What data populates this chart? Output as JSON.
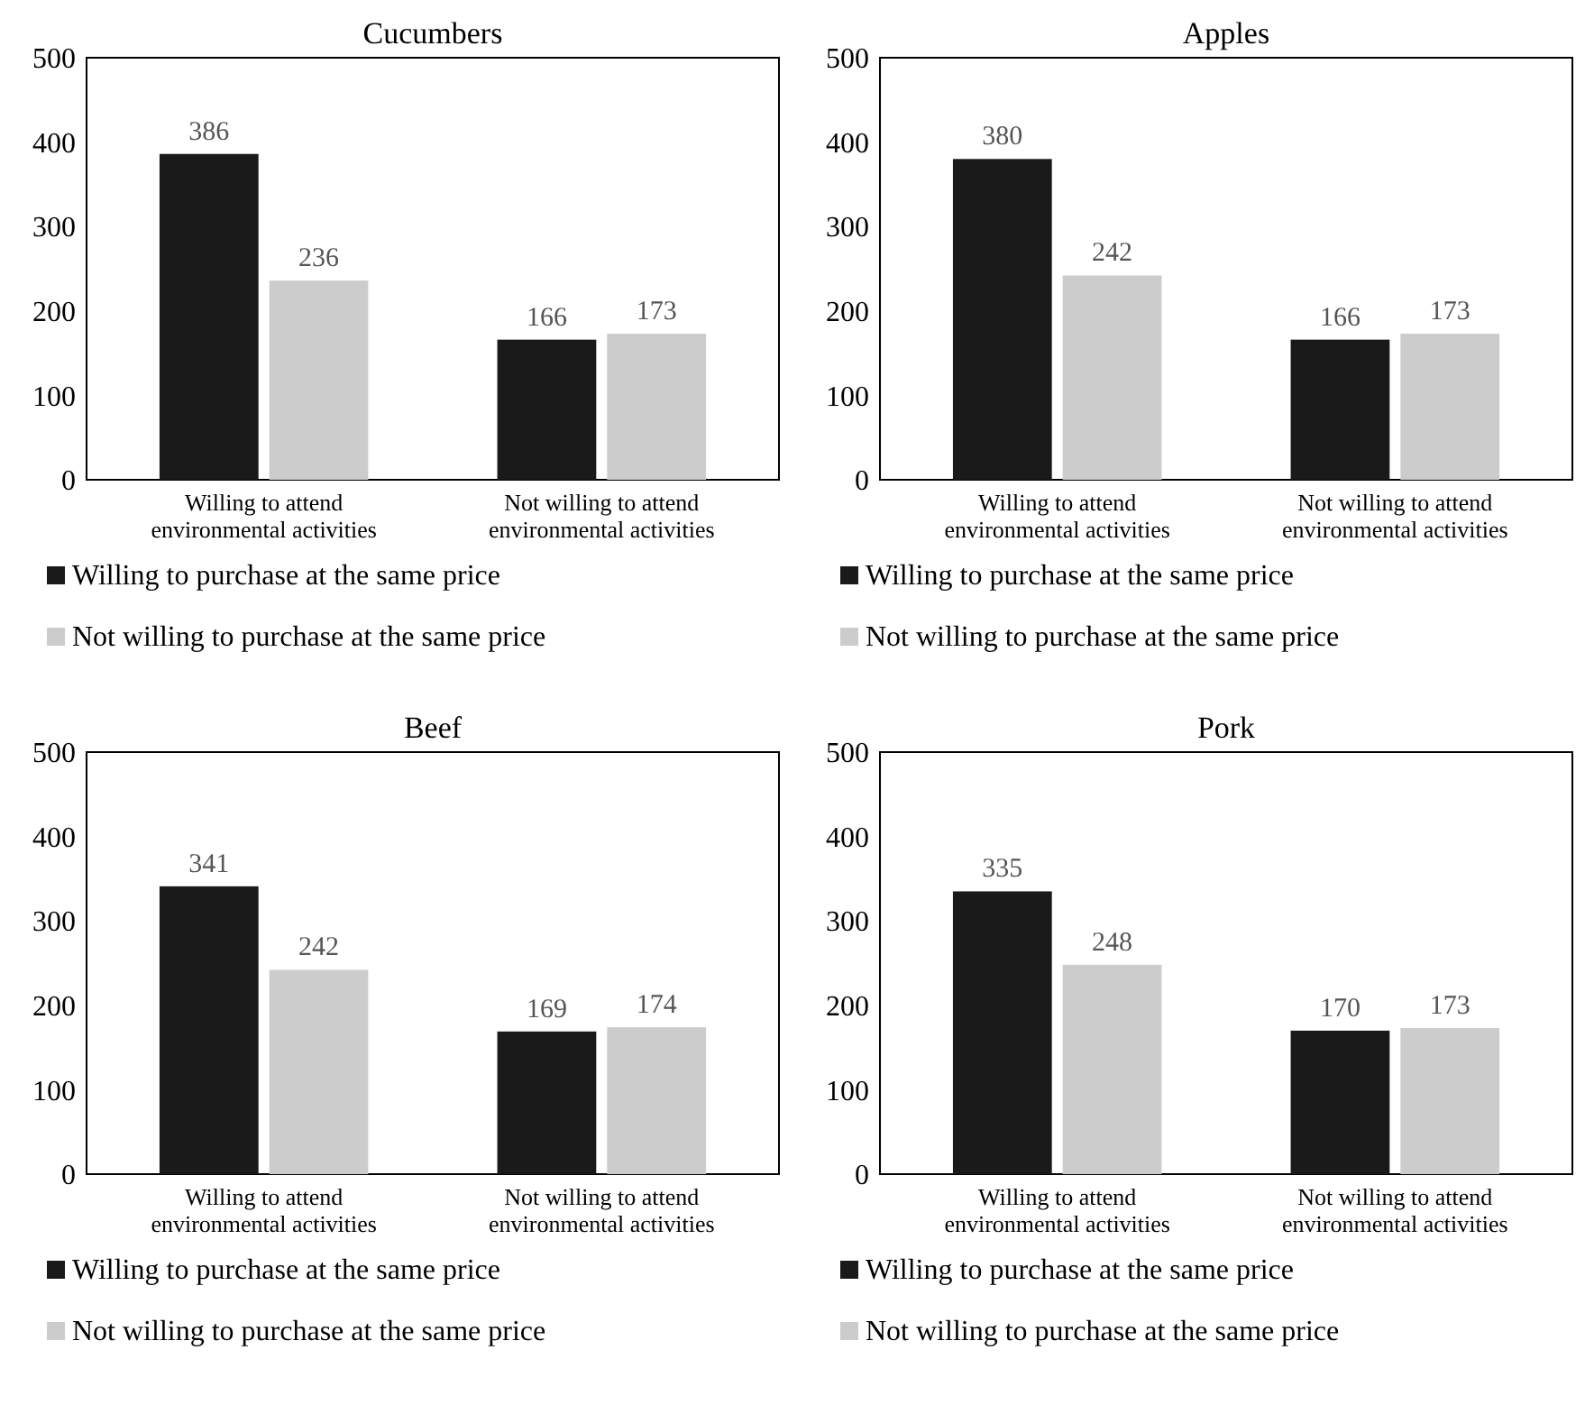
{
  "chart_data": [
    {
      "type": "bar",
      "title": "Cucumbers",
      "categories": [
        "Willing to attend environmental activities",
        "Not willing to attend environmental activities"
      ],
      "series": [
        {
          "name": "Willing to purchase at the same price",
          "color": "#1a1a1a",
          "values": [
            386,
            166
          ]
        },
        {
          "name": "Not willing to purchase at the same price",
          "color": "#cccccc",
          "values": [
            236,
            173
          ]
        }
      ],
      "ylim": [
        0,
        500
      ],
      "yticks": [
        0,
        100,
        200,
        300,
        400,
        500
      ],
      "grid": false,
      "legend": "bottom",
      "data_labels": true
    },
    {
      "type": "bar",
      "title": "Apples",
      "categories": [
        "Willing to attend environmental activities",
        "Not willing to attend environmental activities"
      ],
      "series": [
        {
          "name": "Willing to purchase at the same price",
          "color": "#1a1a1a",
          "values": [
            380,
            166
          ]
        },
        {
          "name": "Not willing to purchase at the same price",
          "color": "#cccccc",
          "values": [
            242,
            173
          ]
        }
      ],
      "ylim": [
        0,
        500
      ],
      "yticks": [
        0,
        100,
        200,
        300,
        400,
        500
      ],
      "grid": false,
      "legend": "bottom",
      "data_labels": true
    },
    {
      "type": "bar",
      "title": "Beef",
      "categories": [
        "Willing to attend environmental activities",
        "Not willing to attend environmental activities"
      ],
      "series": [
        {
          "name": "Willing to purchase at the same price",
          "color": "#1a1a1a",
          "values": [
            341,
            169
          ]
        },
        {
          "name": "Not willing to purchase at the same price",
          "color": "#cccccc",
          "values": [
            242,
            174
          ]
        }
      ],
      "ylim": [
        0,
        500
      ],
      "yticks": [
        0,
        100,
        200,
        300,
        400,
        500
      ],
      "grid": false,
      "legend": "bottom",
      "data_labels": true
    },
    {
      "type": "bar",
      "title": "Pork",
      "categories": [
        "Willing to attend environmental activities",
        "Not willing to attend environmental activities"
      ],
      "series": [
        {
          "name": "Willing to purchase at the same price",
          "color": "#1a1a1a",
          "values": [
            335,
            170
          ]
        },
        {
          "name": "Not willing to purchase at the same price",
          "color": "#cccccc",
          "values": [
            248,
            173
          ]
        }
      ],
      "ylim": [
        0,
        500
      ],
      "yticks": [
        0,
        100,
        200,
        300,
        400,
        500
      ],
      "grid": false,
      "legend": "bottom",
      "data_labels": true
    }
  ]
}
